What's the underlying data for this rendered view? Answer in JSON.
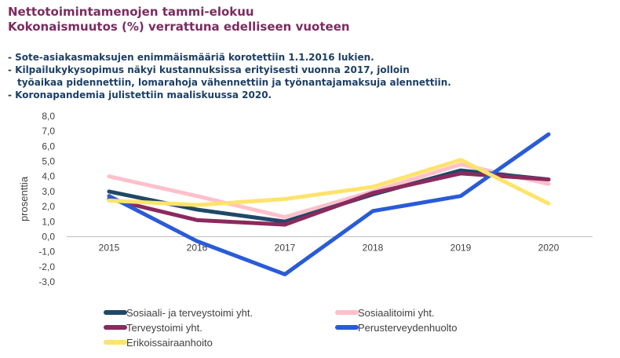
{
  "colors": {
    "title": "#7b2c5f",
    "notes": "#1d3f66",
    "axis_text": "#404040",
    "grid_axis": "#bfbfbf"
  },
  "header": {
    "title_line1": "Nettotoimintamenojen tammi-elokuu",
    "title_line2": "Kokonaismuutos (%) verrattuna edelliseen vuoteen"
  },
  "notes": [
    "- Sote-asiakasmaksujen enimmäismääriä korotettiin 1.1.2016 lukien.",
    "- Kilpailukykysopimus näkyi kustannuksissa erityisesti vuonna 2017, jolloin työaikaa pidennettiin, lomarahoja vähennettiin ja työnantajamaksuja alennettiin.",
    "- Koronapandemia julistettiin maaliskuussa 2020."
  ],
  "chart_data": {
    "type": "line",
    "categories": [
      "2015",
      "2016",
      "2017",
      "2018",
      "2019",
      "2020"
    ],
    "ylabel": "prosenttia",
    "ylim": [
      -3.0,
      8.0
    ],
    "yticks": [
      "8,0",
      "7,0",
      "6,0",
      "5,0",
      "4,0",
      "3,0",
      "2,0",
      "1,0",
      "0,0",
      "-1,0",
      "-2,0",
      "-3,0"
    ],
    "ytick_values": [
      8,
      7,
      6,
      5,
      4,
      3,
      2,
      1,
      0,
      -1,
      -2,
      -3
    ],
    "grid": false,
    "legend_position": "bottom",
    "series": [
      {
        "name": "Sosiaalitoimi yht.",
        "color": "#ffc0cb",
        "values": [
          4.0,
          2.7,
          1.3,
          3.0,
          4.8,
          3.5
        ]
      },
      {
        "name": "Sosiaali- ja terveystoimi yht.",
        "color": "#1f4868",
        "values": [
          3.0,
          1.8,
          1.0,
          2.8,
          4.4,
          3.8
        ]
      },
      {
        "name": "Terveystoimi yht.",
        "color": "#8b2a5e",
        "values": [
          2.5,
          1.1,
          0.8,
          2.9,
          4.2,
          3.8
        ]
      },
      {
        "name": "Perusterveydenhuolto",
        "color": "#2a5bd7",
        "values": [
          2.7,
          -0.3,
          -2.5,
          1.7,
          2.7,
          6.8
        ]
      },
      {
        "name": "Erikoissairaanhoito",
        "color": "#ffe36b",
        "values": [
          2.4,
          2.1,
          2.5,
          3.3,
          5.1,
          2.2
        ]
      }
    ],
    "legend_order": [
      "Sosiaali- ja terveystoimi yht.",
      "Sosiaalitoimi yht.",
      "Terveystoimi yht.",
      "Perusterveydenhuolto",
      "Erikoissairaanhoito"
    ]
  }
}
